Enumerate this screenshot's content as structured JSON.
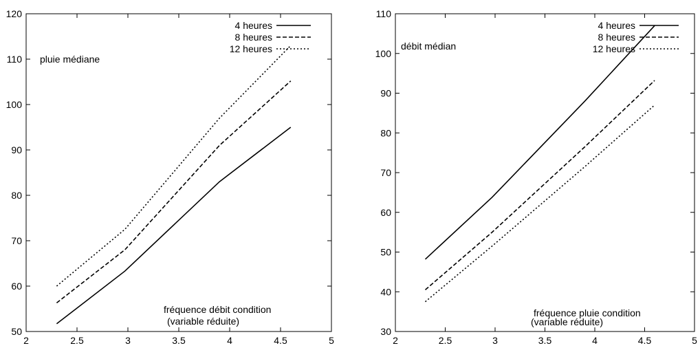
{
  "chart_data": [
    {
      "type": "line",
      "title": "",
      "xlabel": "",
      "ylabel": "pluie médiane",
      "annotation": [
        "fréquence débit condition",
        "(variable réduite)"
      ],
      "xlim": [
        2,
        5
      ],
      "ylim": [
        50,
        120
      ],
      "xticks": [
        "2",
        "2.5",
        "3",
        "3.5",
        "4",
        "4.5",
        "5"
      ],
      "yticks": [
        "50",
        "60",
        "70",
        "80",
        "90",
        "100",
        "110",
        "120"
      ],
      "legend_position": "top-right",
      "grid": false,
      "series": [
        {
          "name": "4 heures",
          "style": "solid",
          "x": [
            2.3,
            2.97,
            3.9,
            4.6
          ],
          "values": [
            51.7,
            63.3,
            83.0,
            95.0
          ]
        },
        {
          "name": "8 heures",
          "style": "dashed",
          "x": [
            2.3,
            2.97,
            3.9,
            4.6
          ],
          "values": [
            56.3,
            68.0,
            91.0,
            105.2
          ]
        },
        {
          "name": "12 heures",
          "style": "dotted",
          "x": [
            2.3,
            2.97,
            3.9,
            4.6
          ],
          "values": [
            60.0,
            72.5,
            97.0,
            113.0
          ]
        }
      ]
    },
    {
      "type": "line",
      "title": "",
      "xlabel": "",
      "ylabel": "débit médian",
      "annotation": [
        "fréquence pluie condition",
        "(variable réduite)"
      ],
      "xlim": [
        2,
        5
      ],
      "ylim": [
        30,
        110
      ],
      "xticks": [
        "2",
        "2.5",
        "3",
        "3.5",
        "4",
        "4.5",
        "5"
      ],
      "yticks": [
        "30",
        "40",
        "50",
        "60",
        "70",
        "80",
        "90",
        "100",
        "110"
      ],
      "legend_position": "top-right",
      "grid": false,
      "series": [
        {
          "name": "4 heures",
          "style": "solid",
          "x": [
            2.3,
            2.97,
            3.9,
            4.6
          ],
          "values": [
            48.2,
            63.8,
            88.0,
            107.0
          ]
        },
        {
          "name": "8 heures",
          "style": "dashed",
          "x": [
            2.3,
            2.97,
            3.9,
            4.6
          ],
          "values": [
            40.5,
            55.0,
            76.5,
            93.2
          ]
        },
        {
          "name": "12 heures",
          "style": "dotted",
          "x": [
            2.3,
            2.97,
            3.9,
            4.6
          ],
          "values": [
            37.5,
            51.5,
            71.5,
            87.0
          ]
        }
      ]
    }
  ]
}
